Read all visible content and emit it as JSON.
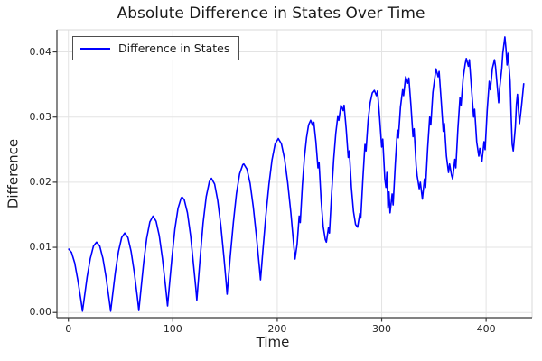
{
  "chart_data": {
    "type": "line",
    "title": "Absolute Difference in States Over Time",
    "xlabel": "Time",
    "ylabel": "Difference",
    "xlim": [
      -11,
      444
    ],
    "ylim": [
      -0.0008,
      0.0434
    ],
    "grid": true,
    "legend_position": "top-left",
    "xticks": {
      "values": [
        0,
        100,
        200,
        300,
        400
      ],
      "labels": [
        "0",
        "100",
        "200",
        "300",
        "400"
      ]
    },
    "yticks": {
      "values": [
        0,
        0.01,
        0.02,
        0.03,
        0.04
      ],
      "labels": [
        "0.00",
        "0.01",
        "0.02",
        "0.03",
        "0.04"
      ]
    },
    "colors": {
      "line": "#0000FF",
      "grid": "#E3E3E3",
      "frame": "#DADADA",
      "spine": "#383838",
      "text": "#262626"
    },
    "series": [
      {
        "name": "Difference in States",
        "color": "#0000FF",
        "points": [
          [
            0,
            0.0098
          ],
          [
            3,
            0.0092
          ],
          [
            6,
            0.0076
          ],
          [
            9,
            0.005
          ],
          [
            12,
            0.0019
          ],
          [
            13.5,
            0.0002
          ],
          [
            15,
            0.002
          ],
          [
            18,
            0.0055
          ],
          [
            21,
            0.0083
          ],
          [
            24,
            0.0102
          ],
          [
            27,
            0.0108
          ],
          [
            30,
            0.0102
          ],
          [
            33,
            0.0083
          ],
          [
            36,
            0.0055
          ],
          [
            39,
            0.002
          ],
          [
            40.5,
            0.0002
          ],
          [
            42,
            0.0023
          ],
          [
            45,
            0.0062
          ],
          [
            48,
            0.0094
          ],
          [
            51,
            0.0115
          ],
          [
            54,
            0.0122
          ],
          [
            57,
            0.0115
          ],
          [
            60,
            0.0094
          ],
          [
            63,
            0.0063
          ],
          [
            66,
            0.0024
          ],
          [
            67.5,
            0.0003
          ],
          [
            69,
            0.0028
          ],
          [
            72,
            0.0076
          ],
          [
            75,
            0.0114
          ],
          [
            78,
            0.0139
          ],
          [
            81,
            0.0148
          ],
          [
            84,
            0.014
          ],
          [
            87,
            0.0118
          ],
          [
            90,
            0.0083
          ],
          [
            93,
            0.0041
          ],
          [
            95,
            0.001
          ],
          [
            96,
            0.0029
          ],
          [
            99,
            0.0082
          ],
          [
            102,
            0.0128
          ],
          [
            105,
            0.016
          ],
          [
            108,
            0.0176
          ],
          [
            109,
            0.0177
          ],
          [
            111,
            0.0173
          ],
          [
            114,
            0.0153
          ],
          [
            117,
            0.0118
          ],
          [
            120,
            0.0071
          ],
          [
            122,
            0.0037
          ],
          [
            123,
            0.0019
          ],
          [
            126,
            0.0081
          ],
          [
            129,
            0.0137
          ],
          [
            132,
            0.0178
          ],
          [
            135,
            0.0201
          ],
          [
            137,
            0.0206
          ],
          [
            140,
            0.0197
          ],
          [
            143,
            0.0172
          ],
          [
            146,
            0.0133
          ],
          [
            149,
            0.0083
          ],
          [
            151,
            0.0047
          ],
          [
            152,
            0.0028
          ],
          [
            155,
            0.0086
          ],
          [
            158,
            0.0139
          ],
          [
            161,
            0.0183
          ],
          [
            164,
            0.0213
          ],
          [
            167,
            0.0227
          ],
          [
            168,
            0.0228
          ],
          [
            171,
            0.022
          ],
          [
            174,
            0.0198
          ],
          [
            177,
            0.0163
          ],
          [
            180,
            0.0118
          ],
          [
            183,
            0.0067
          ],
          [
            184,
            0.005
          ],
          [
            186,
            0.009
          ],
          [
            189,
            0.0147
          ],
          [
            192,
            0.0196
          ],
          [
            195,
            0.0234
          ],
          [
            198,
            0.0259
          ],
          [
            201,
            0.0267
          ],
          [
            204,
            0.0259
          ],
          [
            207,
            0.0236
          ],
          [
            210,
            0.0199
          ],
          [
            213,
            0.0153
          ],
          [
            216,
            0.01
          ],
          [
            217,
            0.0082
          ],
          [
            219,
            0.0105
          ],
          [
            221,
            0.0148
          ],
          [
            222,
            0.0138
          ],
          [
            224,
            0.0195
          ],
          [
            226,
            0.0238
          ],
          [
            228,
            0.0268
          ],
          [
            230,
            0.0288
          ],
          [
            232,
            0.0295
          ],
          [
            234,
            0.0287
          ],
          [
            235,
            0.0292
          ],
          [
            237,
            0.0262
          ],
          [
            239,
            0.0222
          ],
          [
            240,
            0.023
          ],
          [
            242,
            0.0172
          ],
          [
            244,
            0.0132
          ],
          [
            246,
            0.0112
          ],
          [
            247,
            0.0108
          ],
          [
            249,
            0.013
          ],
          [
            250,
            0.0122
          ],
          [
            252,
            0.018
          ],
          [
            254,
            0.0235
          ],
          [
            256,
            0.0275
          ],
          [
            258,
            0.0302
          ],
          [
            259,
            0.0295
          ],
          [
            261,
            0.0318
          ],
          [
            263,
            0.031
          ],
          [
            264,
            0.0318
          ],
          [
            266,
            0.0282
          ],
          [
            268,
            0.0238
          ],
          [
            269,
            0.0248
          ],
          [
            271,
            0.0192
          ],
          [
            273,
            0.0155
          ],
          [
            275,
            0.0135
          ],
          [
            277,
            0.0131
          ],
          [
            279,
            0.0152
          ],
          [
            280,
            0.0145
          ],
          [
            282,
            0.0205
          ],
          [
            284,
            0.0258
          ],
          [
            285,
            0.0248
          ],
          [
            287,
            0.0295
          ],
          [
            289,
            0.0322
          ],
          [
            291,
            0.0337
          ],
          [
            293,
            0.0341
          ],
          [
            295,
            0.0333
          ],
          [
            296,
            0.034
          ],
          [
            298,
            0.03
          ],
          [
            300,
            0.0254
          ],
          [
            301,
            0.0266
          ],
          [
            303,
            0.0205
          ],
          [
            304,
            0.0192
          ],
          [
            305,
            0.0215
          ],
          [
            306,
            0.016
          ],
          [
            307,
            0.0185
          ],
          [
            308,
            0.0153
          ],
          [
            310,
            0.0182
          ],
          [
            311,
            0.0165
          ],
          [
            313,
            0.0228
          ],
          [
            315,
            0.028
          ],
          [
            316,
            0.0268
          ],
          [
            318,
            0.0315
          ],
          [
            320,
            0.0342
          ],
          [
            321,
            0.0333
          ],
          [
            323,
            0.0362
          ],
          [
            325,
            0.0352
          ],
          [
            326,
            0.036
          ],
          [
            328,
            0.0318
          ],
          [
            330,
            0.027
          ],
          [
            331,
            0.0282
          ],
          [
            333,
            0.0225
          ],
          [
            334,
            0.021
          ],
          [
            336,
            0.019
          ],
          [
            337,
            0.02
          ],
          [
            339,
            0.0174
          ],
          [
            341,
            0.0205
          ],
          [
            342,
            0.0192
          ],
          [
            344,
            0.0252
          ],
          [
            346,
            0.03
          ],
          [
            347,
            0.0288
          ],
          [
            349,
            0.0338
          ],
          [
            351,
            0.0362
          ],
          [
            352,
            0.0374
          ],
          [
            354,
            0.0362
          ],
          [
            355,
            0.037
          ],
          [
            357,
            0.0325
          ],
          [
            359,
            0.0278
          ],
          [
            360,
            0.029
          ],
          [
            362,
            0.024
          ],
          [
            364,
            0.0215
          ],
          [
            365,
            0.0228
          ],
          [
            367,
            0.021
          ],
          [
            368,
            0.0205
          ],
          [
            370,
            0.0235
          ],
          [
            371,
            0.0222
          ],
          [
            373,
            0.0282
          ],
          [
            375,
            0.033
          ],
          [
            376,
            0.0318
          ],
          [
            378,
            0.036
          ],
          [
            380,
            0.0382
          ],
          [
            381,
            0.039
          ],
          [
            383,
            0.0378
          ],
          [
            384,
            0.0388
          ],
          [
            386,
            0.0345
          ],
          [
            388,
            0.03
          ],
          [
            389,
            0.0312
          ],
          [
            391,
            0.0262
          ],
          [
            393,
            0.024
          ],
          [
            394,
            0.0252
          ],
          [
            396,
            0.0232
          ],
          [
            398,
            0.0262
          ],
          [
            399,
            0.025
          ],
          [
            401,
            0.031
          ],
          [
            403,
            0.0355
          ],
          [
            404,
            0.0342
          ],
          [
            406,
            0.0375
          ],
          [
            408,
            0.0388
          ],
          [
            409,
            0.0378
          ],
          [
            411,
            0.034
          ],
          [
            412,
            0.0322
          ],
          [
            413,
            0.0345
          ],
          [
            415,
            0.0375
          ],
          [
            416,
            0.0398
          ],
          [
            418,
            0.0423
          ],
          [
            419,
            0.0405
          ],
          [
            420,
            0.038
          ],
          [
            421,
            0.0398
          ],
          [
            423,
            0.0355
          ],
          [
            424,
            0.03
          ],
          [
            425,
            0.0258
          ],
          [
            426,
            0.0248
          ],
          [
            428,
            0.0285
          ],
          [
            429,
            0.032
          ],
          [
            430,
            0.0335
          ],
          [
            431,
            0.031
          ],
          [
            432,
            0.029
          ],
          [
            434,
            0.0318
          ],
          [
            436,
            0.0352
          ]
        ]
      }
    ]
  }
}
